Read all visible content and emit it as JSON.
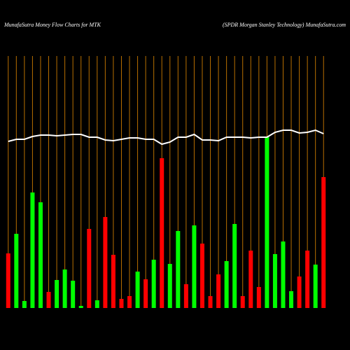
{
  "chart_data": {
    "type": "bar",
    "title": "MunafaSutra  Money Flow  Charts for MTK",
    "subtitle": "(SPDR Morgan  Stanley Technology) MunafaSutra.com",
    "ylim": [
      0,
      360
    ],
    "grid_color": "#b86f00",
    "line_color": "#ffffff",
    "values": [
      78,
      106,
      10,
      165,
      151,
      23,
      40,
      55,
      39,
      3,
      113,
      11,
      130,
      76,
      13,
      17,
      52,
      41,
      69,
      214,
      63,
      110,
      34,
      118,
      92,
      17,
      48,
      67,
      120,
      17,
      82,
      30,
      245,
      77,
      95,
      24,
      45,
      82,
      62,
      187
    ],
    "colors": [
      "#ff0000",
      "#00ff00",
      "#00ff00",
      "#00ff00",
      "#00ff00",
      "#ff0000",
      "#00ff00",
      "#00ff00",
      "#00ff00",
      "#00ff00",
      "#ff0000",
      "#00ff00",
      "#ff0000",
      "#ff0000",
      "#ff0000",
      "#ff0000",
      "#00ff00",
      "#ff0000",
      "#00ff00",
      "#ff0000",
      "#00ff00",
      "#00ff00",
      "#ff0000",
      "#00ff00",
      "#ff0000",
      "#ff0000",
      "#ff0000",
      "#00ff00",
      "#00ff00",
      "#ff0000",
      "#ff0000",
      "#ff0000",
      "#00ff00",
      "#00ff00",
      "#00ff00",
      "#00ff00",
      "#ff0000",
      "#ff0000",
      "#00ff00",
      "#ff0000"
    ],
    "line_values": [
      238,
      241,
      241,
      245,
      247,
      247,
      246,
      247,
      248,
      248,
      244,
      244,
      240,
      239,
      241,
      243,
      243,
      241,
      241,
      234,
      237,
      244,
      244,
      248,
      240,
      240,
      239,
      244,
      244,
      244,
      243,
      244,
      244,
      251,
      254,
      254,
      250,
      251,
      254,
      249
    ]
  }
}
